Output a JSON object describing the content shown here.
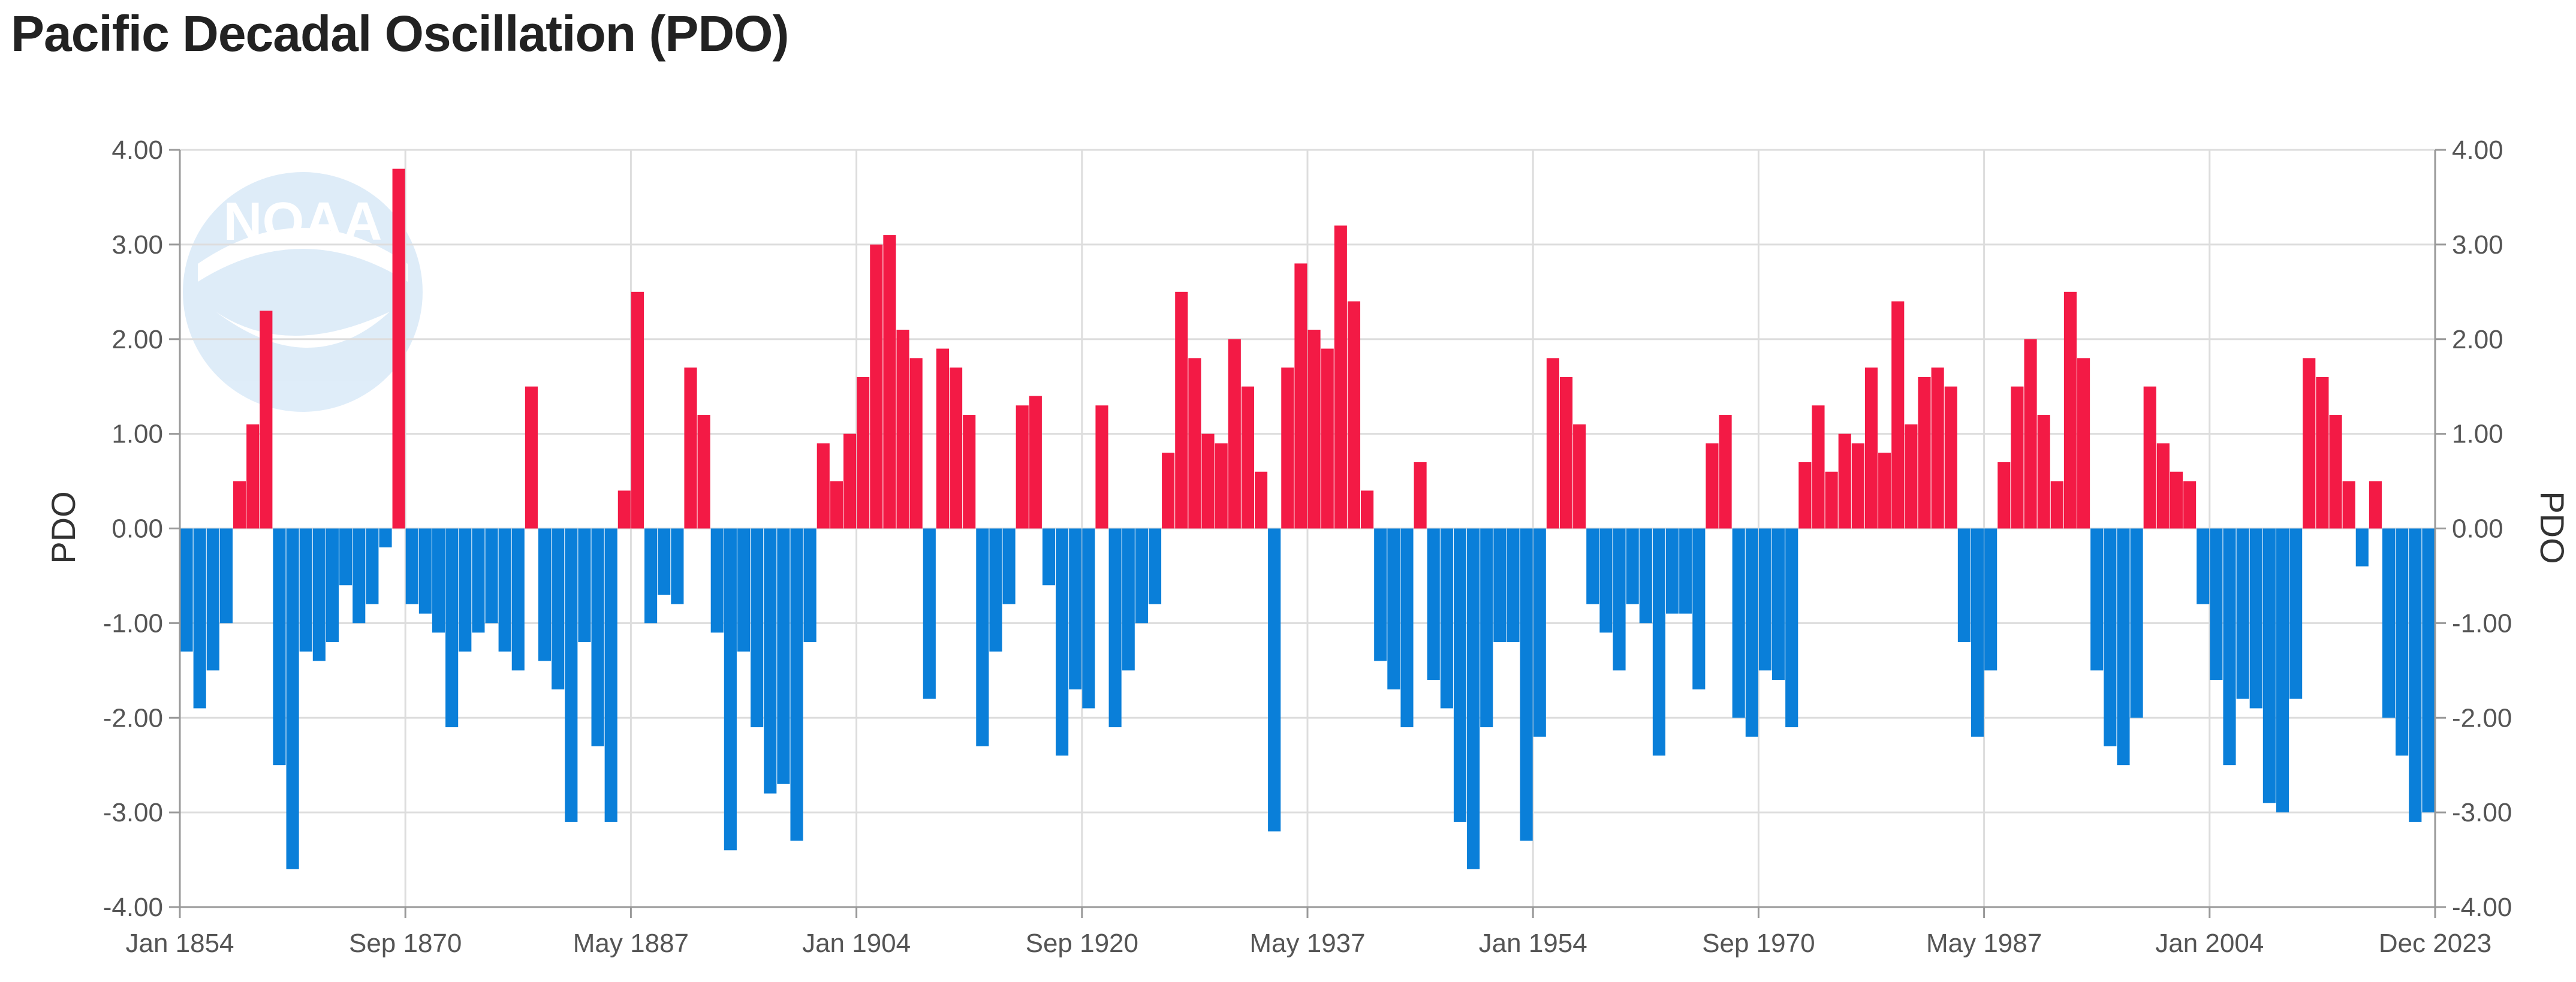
{
  "title": "Pacific Decadal Oscillation (PDO)",
  "colors": {
    "positive": "#f31a45",
    "negative": "#0a7fd9",
    "grid": "#dddddd",
    "axis": "#999999"
  },
  "watermark": {
    "text": "NOAA",
    "icon": "noaa-logo-icon"
  },
  "chart_data": {
    "type": "bar",
    "title": "Pacific Decadal Oscillation (PDO)",
    "ylabel": "PDO",
    "ylabel_right": "PDO",
    "ylim": [
      -4,
      4
    ],
    "yticks": [
      4,
      3,
      2,
      1,
      0,
      -1,
      -2,
      -3,
      -4
    ],
    "ytick_labels": [
      "4.00",
      "3.00",
      "2.00",
      "1.00",
      "0.00",
      "-1.00",
      "-2.00",
      "-3.00",
      "-4.00"
    ],
    "xrange": [
      "Jan 1854",
      "Dec 2023"
    ],
    "xtick_labels": [
      "Jan 1854",
      "Sep 1870",
      "May 1887",
      "Jan 1904",
      "Sep 1920",
      "May 1937",
      "Jan 1954",
      "Sep 1970",
      "May 1987",
      "Jan 2004",
      "Dec 2023"
    ],
    "grid": true,
    "legend": "none",
    "positive_color": "#f31a45",
    "negative_color": "#0a7fd9",
    "series": [
      {
        "resolution": "approximate annual values, Jan 1854 - Dec 2023",
        "points": [
          [
            "1854",
            -1.3
          ],
          [
            "1855",
            -1.9
          ],
          [
            "1856",
            -1.5
          ],
          [
            "1857",
            -1.0
          ],
          [
            "1858",
            0.5
          ],
          [
            "1859",
            1.1
          ],
          [
            "1860",
            2.3
          ],
          [
            "1861",
            -2.5
          ],
          [
            "1862",
            -3.6
          ],
          [
            "1863",
            -1.3
          ],
          [
            "1864",
            -1.4
          ],
          [
            "1865",
            -1.2
          ],
          [
            "1866",
            -0.6
          ],
          [
            "1867",
            -1.0
          ],
          [
            "1868",
            -0.8
          ],
          [
            "1869",
            -0.2
          ],
          [
            "1870",
            3.8
          ],
          [
            "1871",
            -0.8
          ],
          [
            "1872",
            -0.9
          ],
          [
            "1873",
            -1.1
          ],
          [
            "1874",
            -2.1
          ],
          [
            "1875",
            -1.3
          ],
          [
            "1876",
            -1.1
          ],
          [
            "1877",
            -1.0
          ],
          [
            "1878",
            -1.3
          ],
          [
            "1879",
            -1.5
          ],
          [
            "1880",
            1.5
          ],
          [
            "1881",
            -1.4
          ],
          [
            "1882",
            -1.7
          ],
          [
            "1883",
            -3.1
          ],
          [
            "1884",
            -1.2
          ],
          [
            "1885",
            -2.3
          ],
          [
            "1886",
            -3.1
          ],
          [
            "1887",
            0.4
          ],
          [
            "1888",
            2.5
          ],
          [
            "1889",
            -1.0
          ],
          [
            "1890",
            -0.7
          ],
          [
            "1891",
            -0.8
          ],
          [
            "1892",
            1.7
          ],
          [
            "1893",
            1.2
          ],
          [
            "1894",
            -1.1
          ],
          [
            "1895",
            -3.4
          ],
          [
            "1896",
            -1.3
          ],
          [
            "1897",
            -2.1
          ],
          [
            "1898",
            -2.8
          ],
          [
            "1899",
            -2.7
          ],
          [
            "1900",
            -3.3
          ],
          [
            "1901",
            -1.2
          ],
          [
            "1902",
            0.9
          ],
          [
            "1903",
            0.5
          ],
          [
            "1904",
            1.0
          ],
          [
            "1905",
            1.6
          ],
          [
            "1906",
            3.0
          ],
          [
            "1907",
            3.1
          ],
          [
            "1908",
            2.1
          ],
          [
            "1909",
            1.8
          ],
          [
            "1910",
            -1.8
          ],
          [
            "1911",
            1.9
          ],
          [
            "1912",
            1.7
          ],
          [
            "1913",
            1.2
          ],
          [
            "1914",
            -2.3
          ],
          [
            "1915",
            -1.3
          ],
          [
            "1916",
            -0.8
          ],
          [
            "1917",
            1.3
          ],
          [
            "1918",
            1.4
          ],
          [
            "1919",
            -0.6
          ],
          [
            "1920",
            -2.4
          ],
          [
            "1921",
            -1.7
          ],
          [
            "1922",
            -1.9
          ],
          [
            "1923",
            1.3
          ],
          [
            "1924",
            -2.1
          ],
          [
            "1925",
            -1.5
          ],
          [
            "1926",
            -1.0
          ],
          [
            "1927",
            -0.8
          ],
          [
            "1928",
            0.8
          ],
          [
            "1929",
            2.5
          ],
          [
            "1930",
            1.8
          ],
          [
            "1931",
            1.0
          ],
          [
            "1932",
            0.9
          ],
          [
            "1933",
            2.0
          ],
          [
            "1934",
            1.5
          ],
          [
            "1935",
            0.6
          ],
          [
            "1936",
            -3.2
          ],
          [
            "1937",
            1.7
          ],
          [
            "1938",
            2.8
          ],
          [
            "1939",
            2.1
          ],
          [
            "1940",
            1.9
          ],
          [
            "1941",
            3.2
          ],
          [
            "1942",
            2.4
          ],
          [
            "1943",
            0.4
          ],
          [
            "1944",
            -1.4
          ],
          [
            "1945",
            -1.7
          ],
          [
            "1946",
            -2.1
          ],
          [
            "1947",
            0.7
          ],
          [
            "1948",
            -1.6
          ],
          [
            "1949",
            -1.9
          ],
          [
            "1950",
            -3.1
          ],
          [
            "1951",
            -3.6
          ],
          [
            "1952",
            -2.1
          ],
          [
            "1953",
            -1.2
          ],
          [
            "1954",
            -1.2
          ],
          [
            "1955",
            -3.3
          ],
          [
            "1956",
            -2.2
          ],
          [
            "1957",
            1.8
          ],
          [
            "1958",
            1.6
          ],
          [
            "1959",
            1.1
          ],
          [
            "1960",
            -0.8
          ],
          [
            "1961",
            -1.1
          ],
          [
            "1962",
            -1.5
          ],
          [
            "1963",
            -0.8
          ],
          [
            "1964",
            -1.0
          ],
          [
            "1965",
            -2.4
          ],
          [
            "1966",
            -0.9
          ],
          [
            "1967",
            -0.9
          ],
          [
            "1968",
            -1.7
          ],
          [
            "1969",
            0.9
          ],
          [
            "1970",
            1.2
          ],
          [
            "1971",
            -2.0
          ],
          [
            "1972",
            -2.2
          ],
          [
            "1973",
            -1.5
          ],
          [
            "1974",
            -1.6
          ],
          [
            "1975",
            -2.1
          ],
          [
            "1976",
            0.7
          ],
          [
            "1977",
            1.3
          ],
          [
            "1978",
            0.6
          ],
          [
            "1979",
            1.0
          ],
          [
            "1980",
            0.9
          ],
          [
            "1981",
            1.7
          ],
          [
            "1982",
            0.8
          ],
          [
            "1983",
            2.4
          ],
          [
            "1984",
            1.1
          ],
          [
            "1985",
            1.6
          ],
          [
            "1986",
            1.7
          ],
          [
            "1987",
            1.5
          ],
          [
            "1988",
            -1.2
          ],
          [
            "1989",
            -2.2
          ],
          [
            "1990",
            -1.5
          ],
          [
            "1991",
            0.7
          ],
          [
            "1992",
            1.5
          ],
          [
            "1993",
            2.0
          ],
          [
            "1994",
            1.2
          ],
          [
            "1995",
            0.5
          ],
          [
            "1996",
            2.5
          ],
          [
            "1997",
            1.8
          ],
          [
            "1998",
            -1.5
          ],
          [
            "1999",
            -2.3
          ],
          [
            "2000",
            -2.5
          ],
          [
            "2001",
            -2.0
          ],
          [
            "2002",
            1.5
          ],
          [
            "2003",
            0.9
          ],
          [
            "2004",
            0.6
          ],
          [
            "2005",
            0.5
          ],
          [
            "2006",
            -0.8
          ],
          [
            "2007",
            -1.6
          ],
          [
            "2008",
            -2.5
          ],
          [
            "2009",
            -1.8
          ],
          [
            "2010",
            -1.9
          ],
          [
            "2011",
            -2.9
          ],
          [
            "2012",
            -3.0
          ],
          [
            "2013",
            -1.8
          ],
          [
            "2014",
            1.8
          ],
          [
            "2015",
            1.6
          ],
          [
            "2016",
            1.2
          ],
          [
            "2017",
            0.5
          ],
          [
            "2018",
            -0.4
          ],
          [
            "2019",
            0.5
          ],
          [
            "2020",
            -2.0
          ],
          [
            "2021",
            -2.4
          ],
          [
            "2022",
            -3.1
          ],
          [
            "2023",
            -3.0
          ]
        ]
      }
    ]
  }
}
